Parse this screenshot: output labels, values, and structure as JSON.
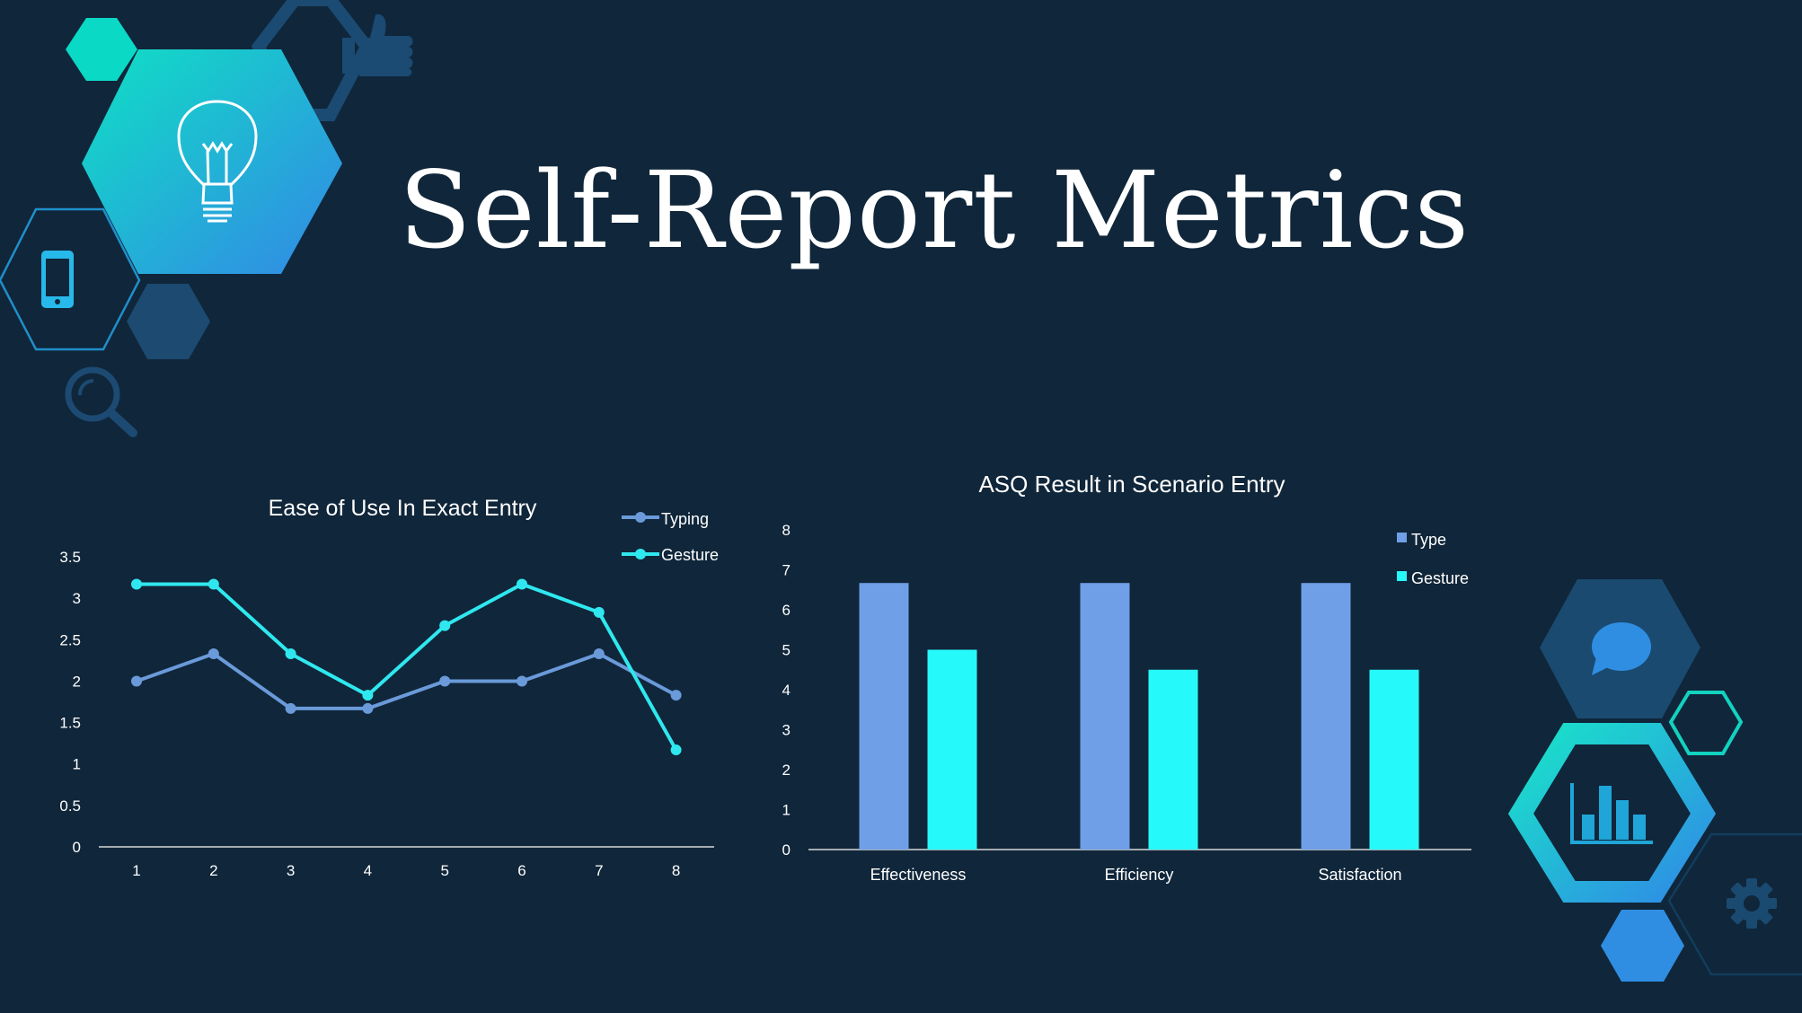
{
  "slide": {
    "title": "Self-Report Metrics",
    "colors": {
      "background": "#10263a",
      "typing": "#6a9ad9",
      "gesture": "#2fe8ef",
      "type_bar": "#6f9fe6",
      "gesture_bar": "#26f9f9",
      "decor_dark": "#1a4a70",
      "decor_teal": "#14d6c4",
      "decor_blue": "#2f8fe3"
    },
    "decor_icons": [
      "lightbulb-icon",
      "thumbs-up-icon",
      "smartphone-icon",
      "magnifier-icon",
      "chat-bubble-icon",
      "bar-chart-icon",
      "gear-icon"
    ]
  },
  "chart_data": [
    {
      "type": "line",
      "title": "Ease of Use In Exact Entry",
      "x": [
        1,
        2,
        3,
        4,
        5,
        6,
        7,
        8
      ],
      "categories": [
        "1",
        "2",
        "3",
        "4",
        "5",
        "6",
        "7",
        "8"
      ],
      "series": [
        {
          "name": "Typing",
          "values": [
            2.0,
            2.33,
            1.67,
            1.67,
            2.0,
            2.0,
            2.33,
            1.83
          ]
        },
        {
          "name": "Gesture",
          "values": [
            3.17,
            3.17,
            2.33,
            1.83,
            2.67,
            3.17,
            2.83,
            1.17
          ]
        }
      ],
      "yticks": [
        "0",
        "0.5",
        "1",
        "1.5",
        "2",
        "2.5",
        "3",
        "3.5"
      ],
      "ylim": [
        0,
        3.5
      ],
      "grid": false,
      "legend": "top-right"
    },
    {
      "type": "bar",
      "title": "ASQ Result in Scenario Entry",
      "categories": [
        "Effectiveness",
        "Efficiency",
        "Satisfaction"
      ],
      "series": [
        {
          "name": "Type",
          "values": [
            6.67,
            6.67,
            6.67
          ]
        },
        {
          "name": "Gesture",
          "values": [
            5.0,
            4.5,
            4.5
          ]
        }
      ],
      "yticks": [
        "0",
        "1",
        "2",
        "3",
        "4",
        "5",
        "6",
        "7",
        "8"
      ],
      "ylim": [
        0,
        8
      ],
      "grid": false,
      "legend": "top-right"
    }
  ]
}
